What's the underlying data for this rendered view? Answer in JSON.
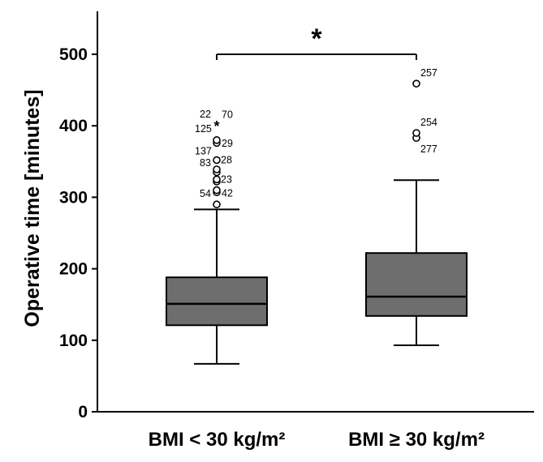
{
  "chart_data": {
    "type": "boxplot",
    "ylabel": "Operative time [minutes]",
    "ylim": [
      0,
      550
    ],
    "yticks": [
      0,
      100,
      200,
      300,
      400,
      500
    ],
    "grid": false,
    "categories": [
      "BMI < 30 kg/m²",
      "BMI ≥ 30 kg/m²"
    ],
    "boxes": [
      {
        "category": "BMI < 30 kg/m²",
        "whisker_low": 67,
        "q1": 121,
        "median": 151,
        "q3": 188,
        "whisker_high": 283,
        "outliers": [
          {
            "value": 290,
            "label": "",
            "marker": "circle"
          },
          {
            "value": 307,
            "label": "54",
            "marker": "circle"
          },
          {
            "value": 310,
            "label": "42",
            "marker": "circle"
          },
          {
            "value": 322,
            "label": "",
            "marker": "circle"
          },
          {
            "value": 325,
            "label": "23",
            "marker": "circle"
          },
          {
            "value": 335,
            "label": "",
            "marker": "circle"
          },
          {
            "value": 339,
            "label": "83",
            "marker": "circle"
          },
          {
            "value": 352,
            "label": "28",
            "marker": "circle"
          },
          {
            "value": 376,
            "label": "137",
            "marker": "circle"
          },
          {
            "value": 380,
            "label": "29",
            "marker": "circle"
          },
          {
            "value": 399,
            "label": "125",
            "marker": "star"
          },
          {
            "value": 400,
            "label": "22",
            "marker": "star"
          },
          {
            "value": 401,
            "label": "70",
            "marker": "star"
          }
        ]
      },
      {
        "category": "BMI ≥ 30 kg/m²",
        "whisker_low": 93,
        "q1": 134,
        "median": 161,
        "q3": 222,
        "whisker_high": 324,
        "outliers": [
          {
            "value": 383,
            "label": "277",
            "marker": "circle"
          },
          {
            "value": 390,
            "label": "254",
            "marker": "circle"
          },
          {
            "value": 459,
            "label": "257",
            "marker": "circle"
          }
        ]
      }
    ],
    "significance": {
      "between": [
        "BMI < 30 kg/m²",
        "BMI ≥ 30 kg/m²"
      ],
      "value": 500,
      "marker": "*"
    },
    "colors": {
      "box_fill": "#6e6e6e",
      "line": "#000000"
    }
  }
}
